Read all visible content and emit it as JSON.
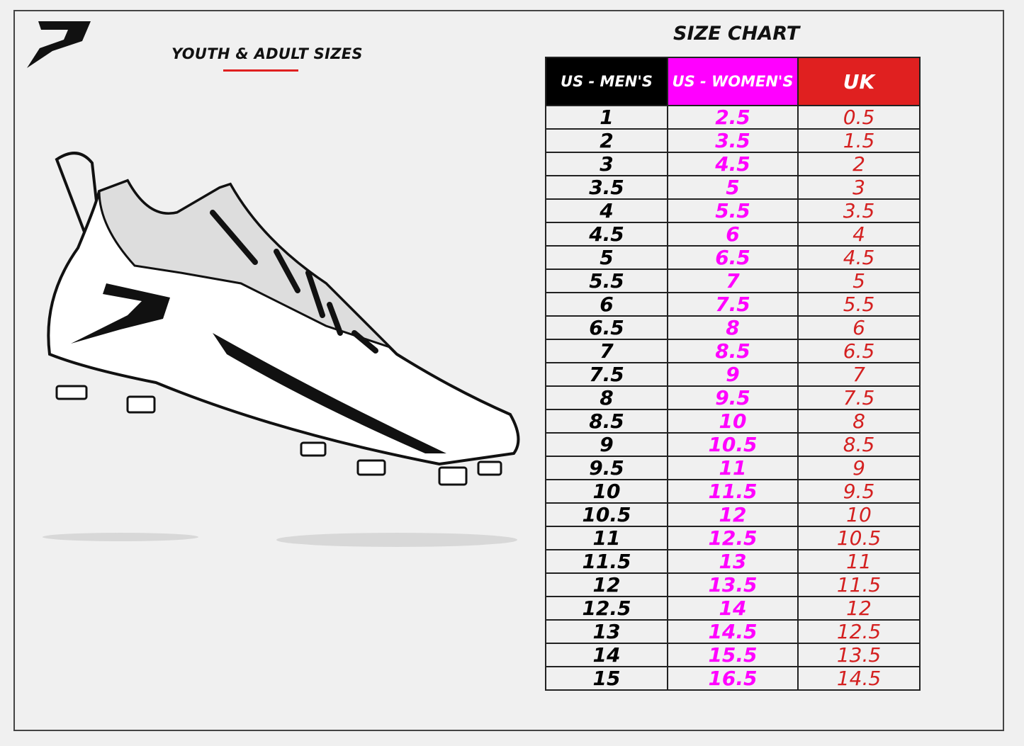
{
  "header": {
    "subtitle": "YOUTH & ADULT SIZES",
    "title": "SIZE CHART",
    "logo_text": "P"
  },
  "colors": {
    "mens": "#000000",
    "womens": "#ff00ff",
    "uk": "#e02020"
  },
  "table": {
    "columns": [
      "US - MEN'S",
      "US - WOMEN'S",
      "UK"
    ],
    "rows": [
      [
        "1",
        "2.5",
        "0.5"
      ],
      [
        "2",
        "3.5",
        "1.5"
      ],
      [
        "3",
        "4.5",
        "2"
      ],
      [
        "3.5",
        "5",
        "3"
      ],
      [
        "4",
        "5.5",
        "3.5"
      ],
      [
        "4.5",
        "6",
        "4"
      ],
      [
        "5",
        "6.5",
        "4.5"
      ],
      [
        "5.5",
        "7",
        "5"
      ],
      [
        "6",
        "7.5",
        "5.5"
      ],
      [
        "6.5",
        "8",
        "6"
      ],
      [
        "7",
        "8.5",
        "6.5"
      ],
      [
        "7.5",
        "9",
        "7"
      ],
      [
        "8",
        "9.5",
        "7.5"
      ],
      [
        "8.5",
        "10",
        "8"
      ],
      [
        "9",
        "10.5",
        "8.5"
      ],
      [
        "9.5",
        "11",
        "9"
      ],
      [
        "10",
        "11.5",
        "9.5"
      ],
      [
        "10.5",
        "12",
        "10"
      ],
      [
        "11",
        "12.5",
        "10.5"
      ],
      [
        "11.5",
        "13",
        "11"
      ],
      [
        "12",
        "13.5",
        "11.5"
      ],
      [
        "12.5",
        "14",
        "12"
      ],
      [
        "13",
        "14.5",
        "12.5"
      ],
      [
        "14",
        "15.5",
        "13.5"
      ],
      [
        "15",
        "16.5",
        "14.5"
      ]
    ]
  }
}
